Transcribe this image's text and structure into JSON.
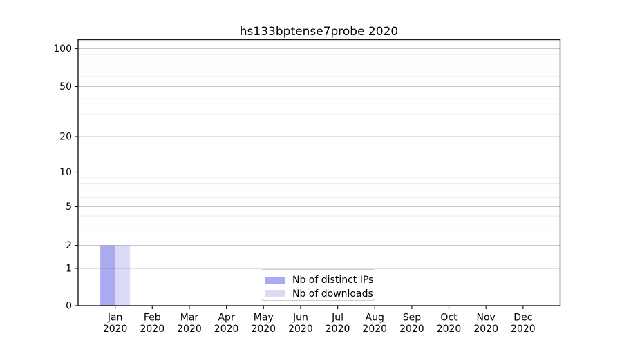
{
  "chart_data": {
    "type": "bar",
    "title": "hs133bptense7probe 2020",
    "categories": [
      "Jan",
      "Feb",
      "Mar",
      "Apr",
      "May",
      "Jun",
      "Jul",
      "Aug",
      "Sep",
      "Oct",
      "Nov",
      "Dec"
    ],
    "category_year_label": "2020",
    "series": [
      {
        "name": "Nb of distinct IPs",
        "color": "#aaaaf0",
        "values": [
          2,
          0,
          0,
          0,
          0,
          0,
          0,
          0,
          0,
          0,
          0,
          0
        ]
      },
      {
        "name": "Nb of downloads",
        "color": "#dbdbf8",
        "values": [
          2,
          0,
          0,
          0,
          0,
          0,
          0,
          0,
          0,
          0,
          0,
          0
        ]
      }
    ],
    "xlabel": "",
    "ylabel": "",
    "yscale": "symlog",
    "ylim": [
      0,
      115
    ],
    "yticks": [
      0,
      1,
      2,
      5,
      10,
      20,
      50,
      100
    ],
    "minor_gridline_values": [
      3,
      4,
      6,
      7,
      8,
      9,
      30,
      40,
      60,
      70,
      80,
      90
    ],
    "grid": "horizontal major+minor",
    "legend_position": "lower-center-inside",
    "colors": {
      "spine": "#1a1a1a",
      "tick_text": "#000000",
      "grid_base": "#808080"
    }
  }
}
